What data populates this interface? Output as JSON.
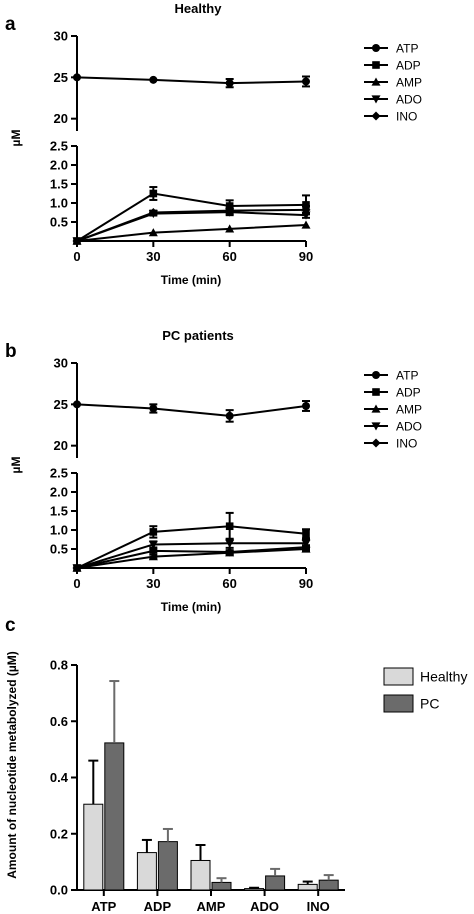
{
  "chart_data": [
    {
      "panel_label": "a",
      "type": "line",
      "title": "Healthy",
      "xlabel": "Time (min)",
      "ylabel": "µM",
      "x": [
        0,
        30,
        60,
        90
      ],
      "xticks": [
        "0",
        "30",
        "60",
        "90"
      ],
      "ylim_upper": [
        15,
        30
      ],
      "yticks_upper": [
        "20",
        "25",
        "30"
      ],
      "ylim_lower": [
        0,
        2.5
      ],
      "yticks_lower": [
        "0.5",
        "1.0",
        "1.5",
        "2.0",
        "2.5"
      ],
      "legend_position": "top-right",
      "series": [
        {
          "name": "ATP",
          "marker": "circle",
          "values": [
            25.0,
            24.7,
            24.3,
            24.5
          ],
          "err": [
            0,
            0,
            0.5,
            0.6
          ]
        },
        {
          "name": "ADP",
          "marker": "square",
          "values": [
            0,
            1.25,
            0.92,
            0.95
          ],
          "err": [
            0,
            0.17,
            0.15,
            0.25
          ]
        },
        {
          "name": "AMP",
          "marker": "triangle-up",
          "values": [
            0,
            0.22,
            0.32,
            0.42
          ],
          "err": [
            0,
            0,
            0,
            0
          ]
        },
        {
          "name": "ADO",
          "marker": "triangle-down",
          "values": [
            0,
            0.72,
            0.76,
            0.68
          ],
          "err": [
            0,
            0.05,
            0.08,
            0.07
          ]
        },
        {
          "name": "INO",
          "marker": "diamond",
          "values": [
            0,
            0.75,
            0.8,
            0.82
          ],
          "err": [
            0,
            0.05,
            0.08,
            0.1
          ]
        }
      ]
    },
    {
      "panel_label": "b",
      "type": "line",
      "title": "PC patients",
      "xlabel": "Time (min)",
      "ylabel": "µM",
      "x": [
        0,
        30,
        60,
        90
      ],
      "xticks": [
        "0",
        "30",
        "60",
        "90"
      ],
      "ylim_upper": [
        15,
        30
      ],
      "yticks_upper": [
        "20",
        "25",
        "30"
      ],
      "ylim_lower": [
        0,
        2.5
      ],
      "yticks_lower": [
        "0.5",
        "1.0",
        "1.5",
        "2.0",
        "2.5"
      ],
      "legend_position": "top-right",
      "series": [
        {
          "name": "ATP",
          "marker": "circle",
          "values": [
            25.0,
            24.5,
            23.6,
            24.8
          ],
          "err": [
            0,
            0.5,
            0.7,
            0.6
          ]
        },
        {
          "name": "ADP",
          "marker": "square",
          "values": [
            0,
            0.95,
            1.1,
            0.9
          ],
          "err": [
            0,
            0.15,
            0.35,
            0.12
          ]
        },
        {
          "name": "AMP",
          "marker": "triangle-up",
          "values": [
            0,
            0.3,
            0.4,
            0.5
          ],
          "err": [
            0,
            0.05,
            0.05,
            0.05
          ]
        },
        {
          "name": "ADO",
          "marker": "triangle-down",
          "values": [
            0,
            0.62,
            0.65,
            0.65
          ],
          "err": [
            0,
            0.08,
            0.12,
            0.1
          ]
        },
        {
          "name": "INO",
          "marker": "diamond",
          "values": [
            0,
            0.45,
            0.42,
            0.55
          ],
          "err": [
            0,
            0.05,
            0.05,
            0.05
          ]
        }
      ]
    },
    {
      "panel_label": "c",
      "type": "bar",
      "title": "",
      "xlabel": "",
      "ylabel": "Amount of nucleotide metabolyzed (µM)",
      "categories": [
        "ATP",
        "ADP",
        "AMP",
        "ADO",
        "INO"
      ],
      "ylim": [
        0,
        0.8
      ],
      "yticks": [
        "0.0",
        "0.2",
        "0.4",
        "0.6",
        "0.8"
      ],
      "legend_position": "top-right",
      "colors": [
        "#d9d9d9",
        "#6b6b6b"
      ],
      "series": [
        {
          "name": "Healthy",
          "values": [
            0.305,
            0.133,
            0.105,
            0.005,
            0.02
          ],
          "err": [
            0.155,
            0.045,
            0.055,
            0.003,
            0.01
          ]
        },
        {
          "name": "PC",
          "values": [
            0.523,
            0.172,
            0.027,
            0.05,
            0.035
          ],
          "err": [
            0.22,
            0.045,
            0.015,
            0.025,
            0.018
          ]
        }
      ]
    }
  ]
}
